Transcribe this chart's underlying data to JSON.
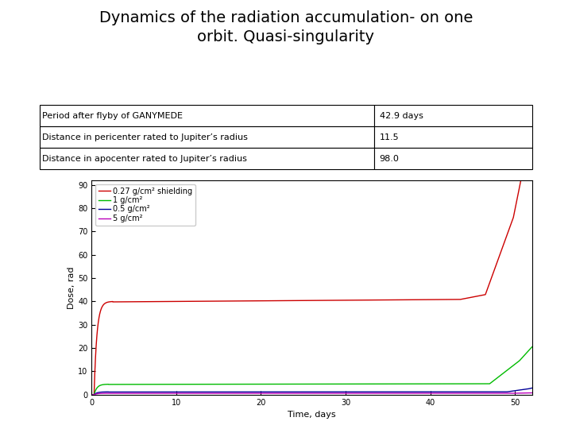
{
  "title": "Dynamics of the radiation accumulation- on one\norbit. Quasi-singularity",
  "table_rows": [
    [
      "Period after flyby of GANYMEDE",
      "42.9 days"
    ],
    [
      "Distance in pericenter rated to Jupiter’s radius",
      "11.5"
    ],
    [
      "Distance in apocenter rated to Jupiter’s radius",
      "98.0"
    ]
  ],
  "xlabel": "Time, days",
  "ylabel": "Dose, rad",
  "xlim": [
    0,
    52
  ],
  "ylim": [
    0,
    92
  ],
  "xticks": [
    0,
    10,
    20,
    30,
    40,
    50
  ],
  "yticks": [
    0,
    10,
    20,
    30,
    40,
    50,
    60,
    70,
    80,
    90
  ],
  "legend_labels": [
    "0.27 g/cm² shielding",
    "1 g/cm²",
    "0.5 g/cm²",
    "5 g/cm²"
  ],
  "line_colors": [
    "#cc0000",
    "#00bb00",
    "#000099",
    "#bb00bb"
  ],
  "background_color": "#ffffff",
  "title_fontsize": 14,
  "axis_fontsize": 8,
  "tick_fontsize": 7,
  "legend_fontsize": 7
}
